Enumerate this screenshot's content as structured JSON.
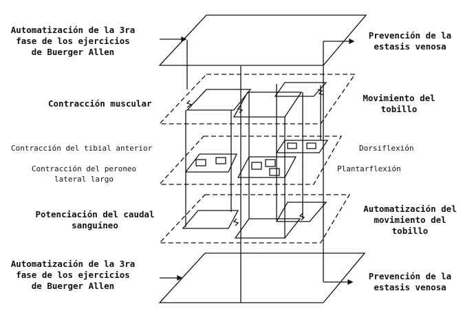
{
  "labels": {
    "top_left": "Automatización de la 3ra\nfase de los ejercicios\nde Buerger Allen",
    "top_right": "Prevención de la\nestasis venosa",
    "contraccion_muscular": "Contracción muscular",
    "movimiento_tobillo": "Movimiento del\ntobillo",
    "contraccion_tibial": "Contracción del tibial anterior",
    "dorsiflexion": "Dorsiflexión",
    "contraccion_peroneo": "Contracción del peroneo\nlateral largo",
    "plantarflexion": "Plantarflexión",
    "potenciacion": "Potenciación del caudal\nsanguíneo",
    "automatizacion_movimiento": "Automatización del\nmovimiento del\ntobillo",
    "bottom_left": "Automatización de la 3ra\nfase de los ejercicios\nde Buerger Allen",
    "bottom_right": "Prevención de la\nestasis venosa"
  },
  "colors": {
    "ink": "#111111",
    "background": "#ffffff"
  }
}
